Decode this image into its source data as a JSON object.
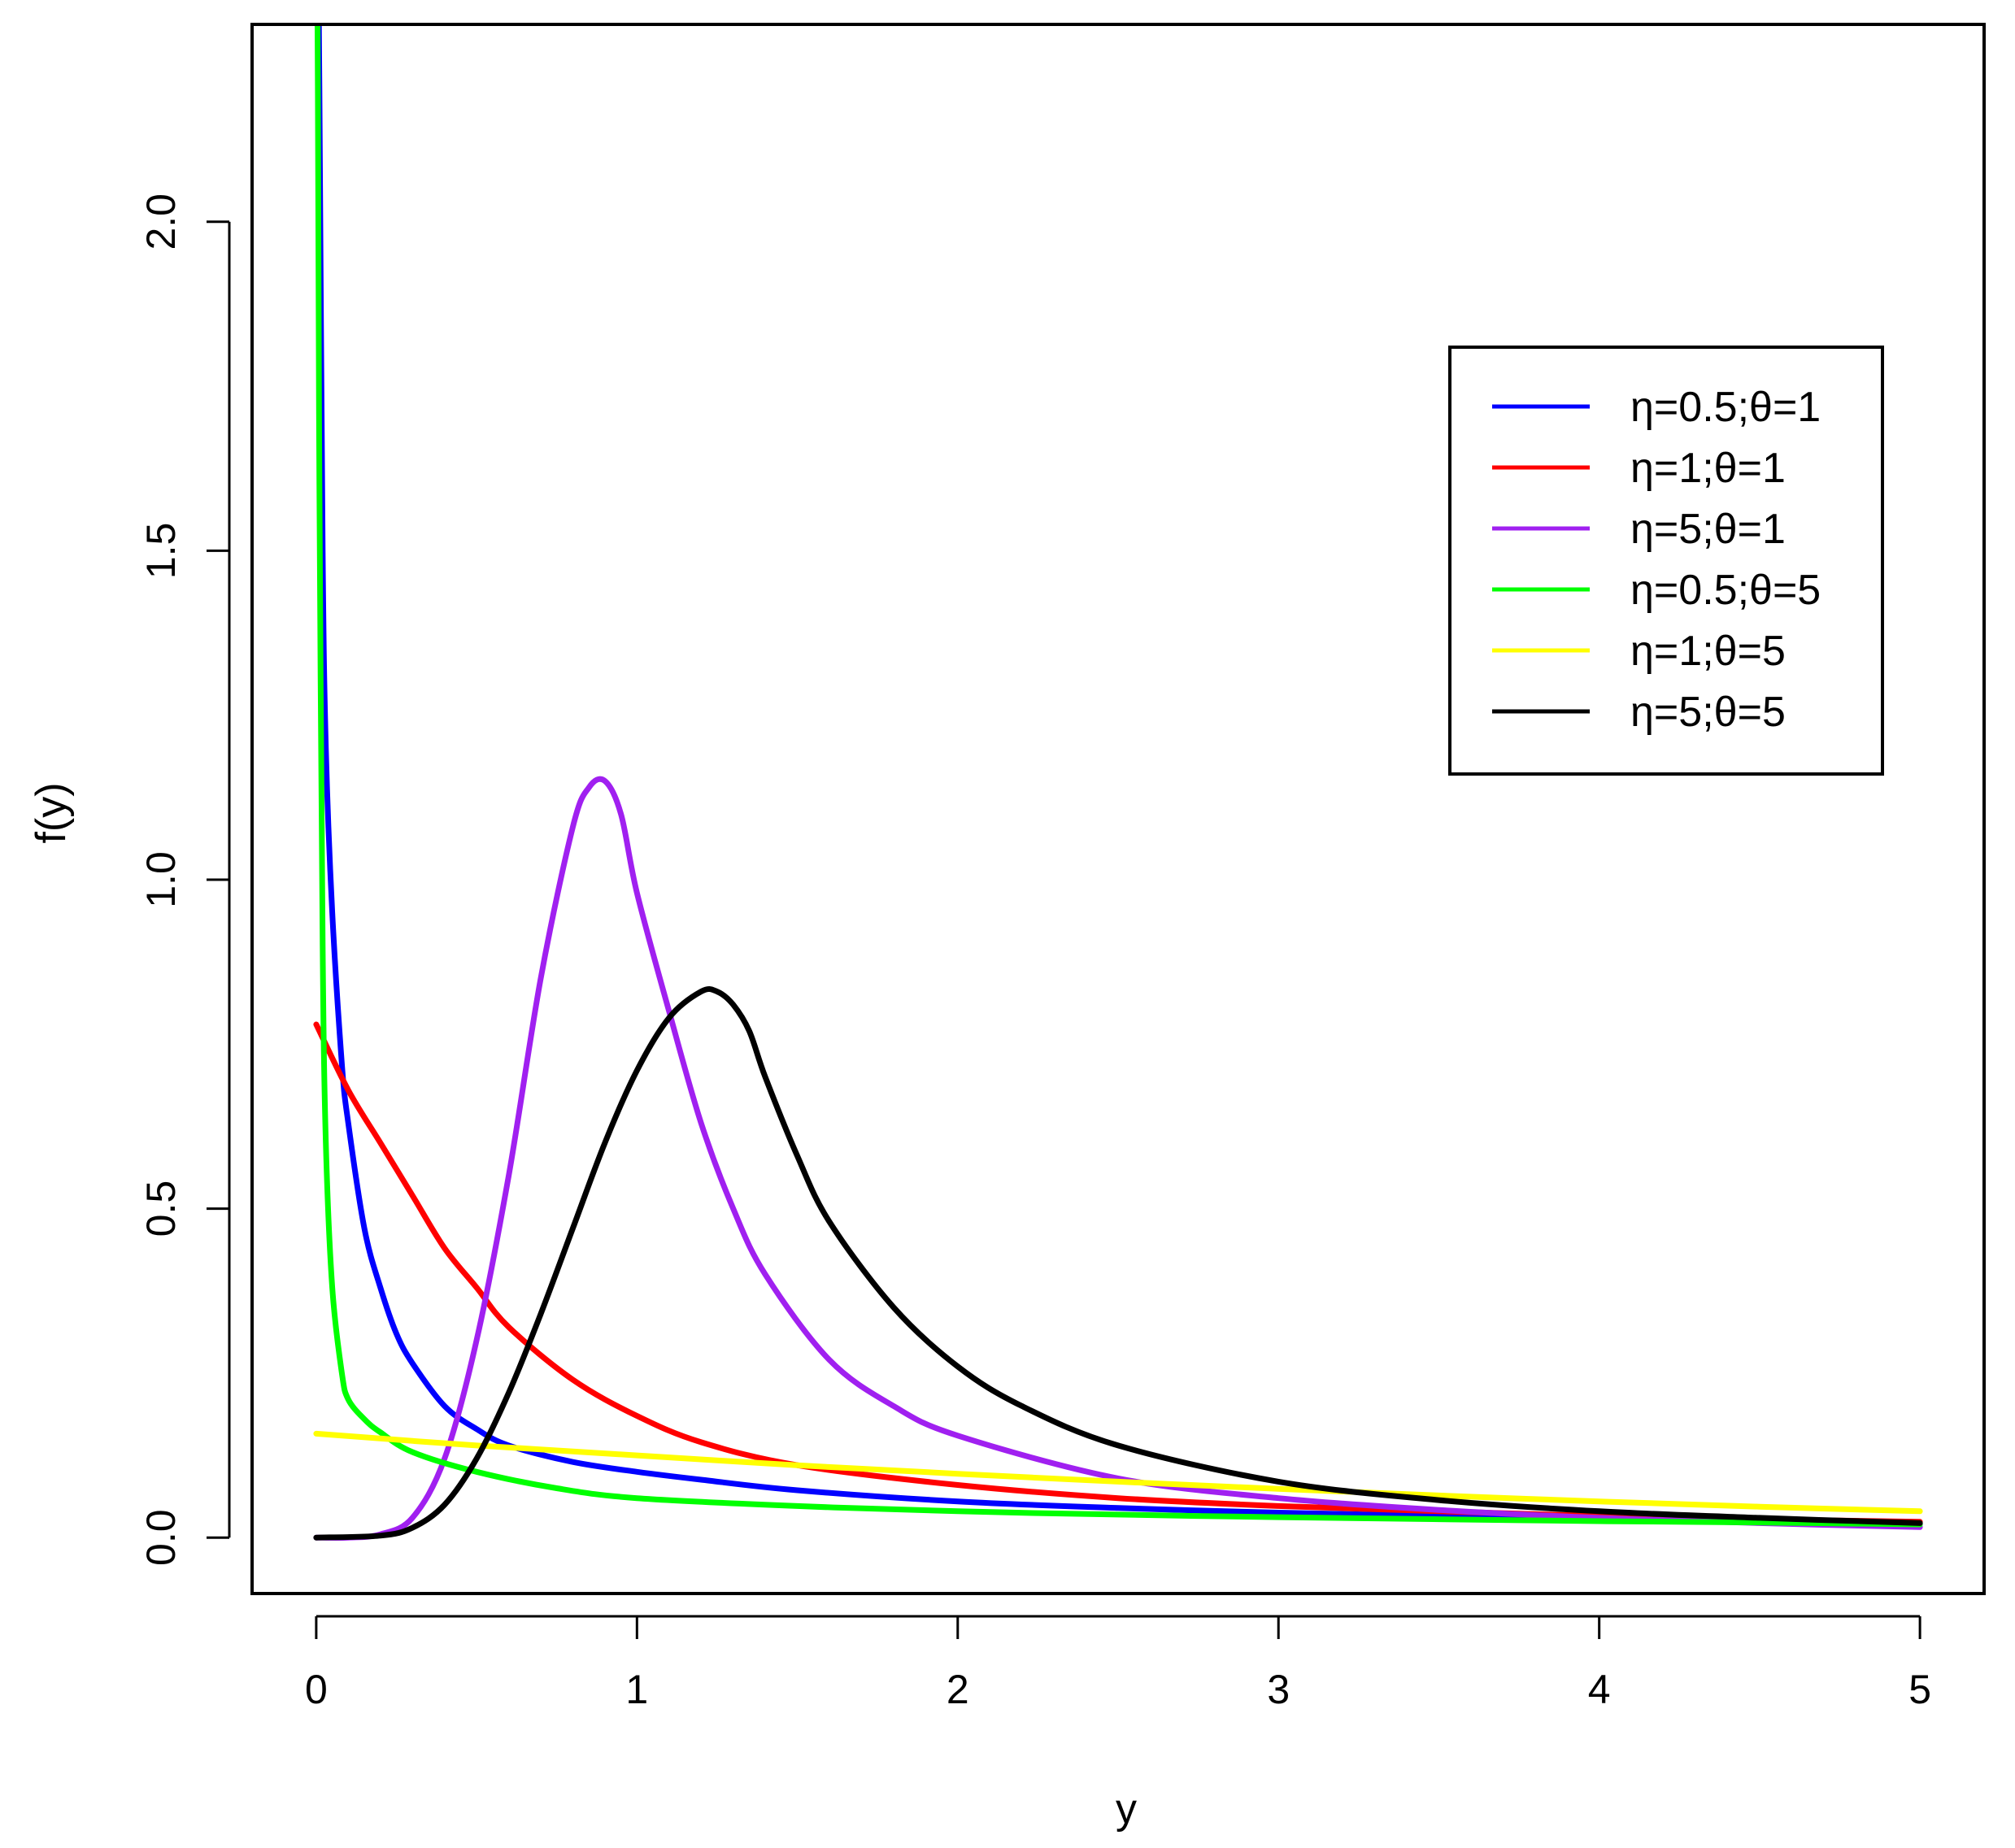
{
  "chart_data": {
    "type": "line",
    "title": "",
    "xlabel": "y",
    "ylabel": "f(y)",
    "xlim": [
      -0.2,
      5.2
    ],
    "ylim": [
      -0.085,
      2.3
    ],
    "xticks": [
      0,
      1,
      2,
      3,
      4,
      5
    ],
    "xtick_labels": [
      "0",
      "1",
      "2",
      "3",
      "4",
      "5"
    ],
    "yticks": [
      0.0,
      0.5,
      1.0,
      1.5,
      2.0
    ],
    "ytick_labels": [
      "0.0",
      "0.5",
      "1.0",
      "1.5",
      "2.0"
    ],
    "grid": false,
    "legend_position": "top-right",
    "series": [
      {
        "name": "η=0.5;θ=1",
        "color": "#0000ff",
        "x": [
          0.005,
          0.01,
          0.02,
          0.03,
          0.05,
          0.08,
          0.1,
          0.15,
          0.2,
          0.25,
          0.3,
          0.4,
          0.5,
          0.6,
          0.8,
          1.0,
          1.2,
          1.5,
          2.0,
          2.5,
          3.0,
          3.5,
          4.0,
          4.5,
          5.0
        ],
        "y": [
          2.5,
          2.2,
          1.5,
          1.2,
          0.95,
          0.72,
          0.63,
          0.47,
          0.38,
          0.31,
          0.265,
          0.2,
          0.165,
          0.14,
          0.115,
          0.1,
          0.088,
          0.072,
          0.055,
          0.045,
          0.038,
          0.033,
          0.028,
          0.024,
          0.021
        ]
      },
      {
        "name": "η=1;θ=1",
        "color": "#ff0000",
        "x": [
          0.0,
          0.1,
          0.2,
          0.3,
          0.4,
          0.5,
          0.6,
          0.8,
          1.0,
          1.2,
          1.5,
          2.0,
          2.5,
          3.0,
          3.5,
          4.0,
          4.5,
          5.0
        ],
        "y": [
          0.78,
          0.68,
          0.6,
          0.52,
          0.44,
          0.38,
          0.32,
          0.24,
          0.185,
          0.145,
          0.11,
          0.08,
          0.06,
          0.048,
          0.04,
          0.033,
          0.028,
          0.024
        ]
      },
      {
        "name": "η=5;θ=1",
        "color": "#a020f0",
        "x": [
          0.0,
          0.1,
          0.2,
          0.3,
          0.4,
          0.5,
          0.6,
          0.7,
          0.8,
          0.85,
          0.9,
          0.95,
          1.0,
          1.1,
          1.2,
          1.3,
          1.4,
          1.6,
          1.8,
          2.0,
          2.5,
          3.0,
          3.5,
          4.0,
          4.5,
          5.0
        ],
        "y": [
          0.0,
          0.0,
          0.005,
          0.03,
          0.12,
          0.3,
          0.55,
          0.85,
          1.08,
          1.14,
          1.15,
          1.1,
          0.98,
          0.8,
          0.63,
          0.5,
          0.4,
          0.27,
          0.2,
          0.155,
          0.09,
          0.06,
          0.042,
          0.03,
          0.022,
          0.016
        ]
      },
      {
        "name": "η=0.5;θ=5",
        "color": "#00ff00",
        "x": [
          0.002,
          0.005,
          0.01,
          0.02,
          0.03,
          0.05,
          0.08,
          0.1,
          0.15,
          0.2,
          0.3,
          0.5,
          0.75,
          1.0,
          1.5,
          2.0,
          2.5,
          3.0,
          3.5,
          4.0,
          4.5,
          5.0
        ],
        "y": [
          2.5,
          2.2,
          1.6,
          0.9,
          0.6,
          0.38,
          0.25,
          0.21,
          0.18,
          0.16,
          0.13,
          0.1,
          0.075,
          0.06,
          0.048,
          0.04,
          0.035,
          0.031,
          0.028,
          0.025,
          0.023,
          0.02
        ]
      },
      {
        "name": "η=1;θ=5",
        "color": "#ffff00",
        "x": [
          0.0,
          0.5,
          1.0,
          1.5,
          2.0,
          2.5,
          3.0,
          3.5,
          4.0,
          4.5,
          5.0
        ],
        "y": [
          0.158,
          0.14,
          0.125,
          0.11,
          0.097,
          0.085,
          0.074,
          0.064,
          0.055,
          0.047,
          0.04
        ]
      },
      {
        "name": "η=5;θ=5",
        "color": "#000000",
        "x": [
          0.0,
          0.2,
          0.3,
          0.4,
          0.5,
          0.6,
          0.7,
          0.8,
          0.9,
          1.0,
          1.1,
          1.2,
          1.25,
          1.3,
          1.35,
          1.4,
          1.5,
          1.6,
          1.8,
          2.0,
          2.2,
          2.5,
          3.0,
          3.5,
          4.0,
          4.5,
          5.0
        ],
        "y": [
          0.0,
          0.003,
          0.015,
          0.05,
          0.12,
          0.22,
          0.34,
          0.47,
          0.6,
          0.71,
          0.79,
          0.83,
          0.83,
          0.81,
          0.77,
          0.7,
          0.58,
          0.48,
          0.35,
          0.26,
          0.2,
          0.14,
          0.085,
          0.057,
          0.04,
          0.03,
          0.022
        ]
      }
    ]
  }
}
